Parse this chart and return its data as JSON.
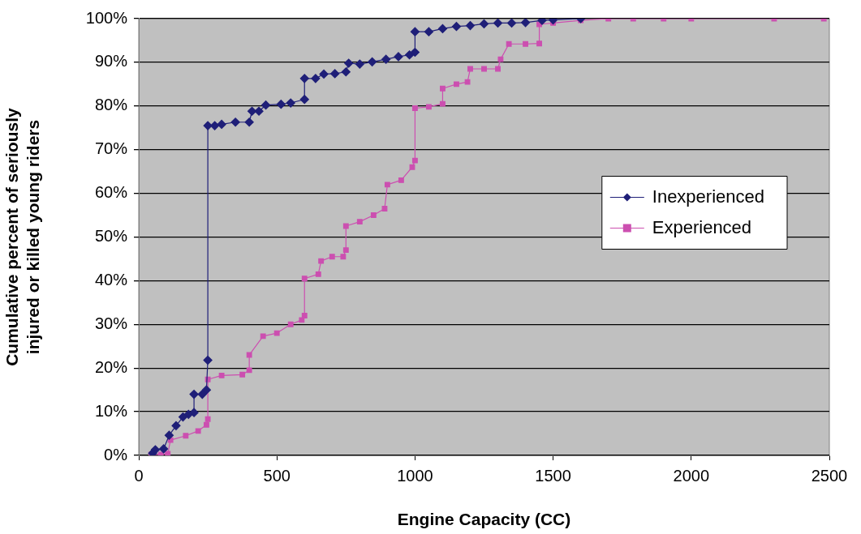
{
  "chart_data": {
    "type": "line",
    "xlabel": "Engine Capacity (CC)",
    "ylabel": "Cumulative percent of seriously injured or killed young riders",
    "xlim": [
      0,
      2500
    ],
    "xticks": [
      0,
      500,
      1000,
      1500,
      2000,
      2500
    ],
    "ylim": [
      0,
      100
    ],
    "yticks": [
      {
        "value": 0,
        "label": "0%"
      },
      {
        "value": 10,
        "label": "10%"
      },
      {
        "value": 20,
        "label": "20%"
      },
      {
        "value": 30,
        "label": "30%"
      },
      {
        "value": 40,
        "label": "40%"
      },
      {
        "value": 50,
        "label": "50%"
      },
      {
        "value": 60,
        "label": "60%"
      },
      {
        "value": 70,
        "label": "70%"
      },
      {
        "value": 80,
        "label": "80%"
      },
      {
        "value": 90,
        "label": "90%"
      },
      {
        "value": 100,
        "label": "100%"
      }
    ],
    "grid": "y",
    "legend": "right",
    "line_style": "solid",
    "series": [
      {
        "name": "Inexperienced",
        "color": "#1f1f78",
        "marker": "diamond",
        "x": [
          50,
          60,
          90,
          110,
          135,
          160,
          180,
          200,
          200,
          230,
          245,
          250,
          250,
          275,
          300,
          350,
          400,
          410,
          435,
          460,
          515,
          550,
          600,
          600,
          640,
          670,
          710,
          750,
          760,
          800,
          845,
          895,
          940,
          980,
          1000,
          1000,
          1050,
          1100,
          1150,
          1200,
          1250,
          1300,
          1350,
          1400,
          1460,
          1500,
          1600
        ],
        "values": [
          0.5,
          1.3,
          1.5,
          4.6,
          6.8,
          8.8,
          9.4,
          9.8,
          14,
          14,
          15,
          21.8,
          75.5,
          75.5,
          75.8,
          76.3,
          76.3,
          78.8,
          78.8,
          80.2,
          80.4,
          80.7,
          81.5,
          86.3,
          86.3,
          87.3,
          87.4,
          87.8,
          89.8,
          89.6,
          90.1,
          90.7,
          91.3,
          91.7,
          92.3,
          97,
          97,
          97.7,
          98.2,
          98.4,
          98.8,
          99,
          99,
          99.1,
          99.6,
          99.7,
          100
        ]
      },
      {
        "name": "Experienced",
        "color": "#cc4fb0",
        "marker": "square",
        "x": [
          45,
          80,
          105,
          115,
          170,
          215,
          245,
          250,
          250,
          300,
          375,
          400,
          400,
          450,
          500,
          550,
          590,
          600,
          600,
          650,
          660,
          700,
          740,
          750,
          750,
          800,
          850,
          890,
          900,
          950,
          990,
          1000,
          1000,
          1050,
          1100,
          1100,
          1150,
          1190,
          1200,
          1250,
          1300,
          1310,
          1340,
          1400,
          1450,
          1450,
          1500,
          1600,
          1700,
          1790,
          1900,
          2000,
          2300,
          2480
        ],
        "values": [
          0.2,
          0.2,
          0.4,
          3.5,
          4.5,
          5.6,
          7,
          8.3,
          17.4,
          18.3,
          18.5,
          19.5,
          23,
          27.3,
          28,
          30,
          31,
          32,
          40.5,
          41.5,
          44.5,
          45.5,
          45.5,
          47,
          52.5,
          53.5,
          55,
          56.5,
          62,
          63,
          66,
          67.5,
          79.5,
          79.8,
          80.5,
          84,
          85,
          85.5,
          88.5,
          88.5,
          88.5,
          90.7,
          94.2,
          94.2,
          94.3,
          98.7,
          99,
          99.6,
          100,
          100,
          100,
          100,
          100,
          100
        ]
      }
    ]
  }
}
